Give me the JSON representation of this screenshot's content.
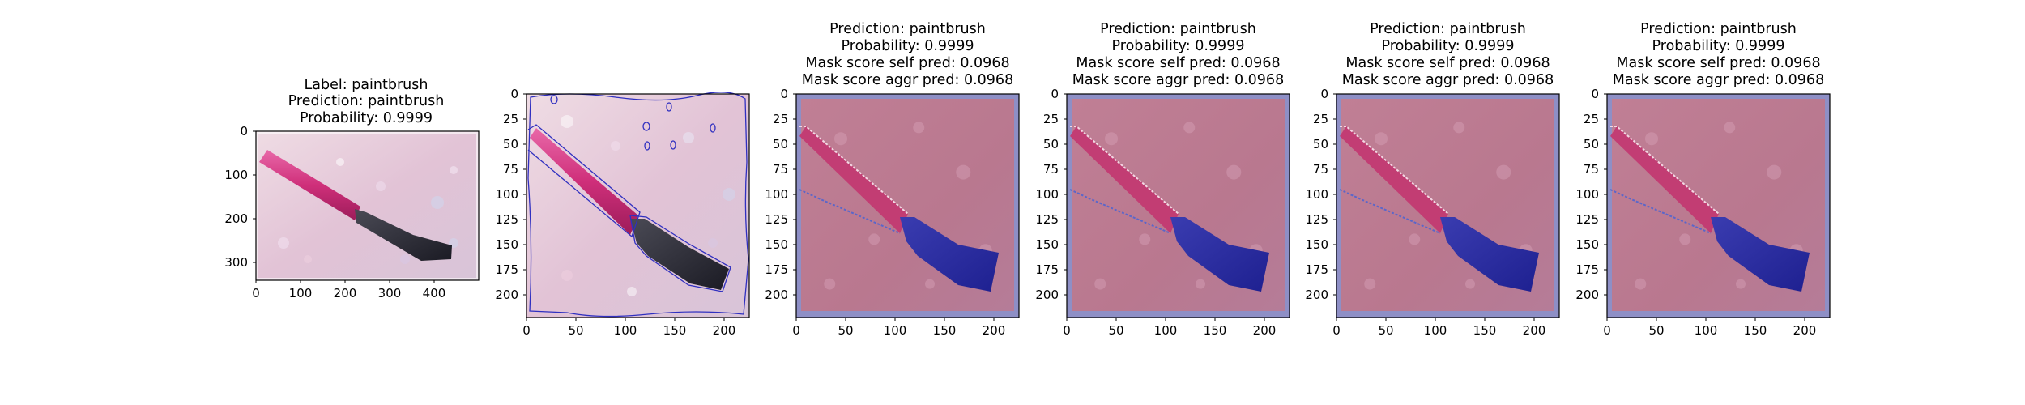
{
  "figure": {
    "panels": [
      {
        "titles": [
          "Label: paintbrush",
          "Prediction: paintbrush",
          "Probability: 0.9999"
        ],
        "xticks": [
          "0",
          "100",
          "200",
          "300",
          "400"
        ],
        "yticks": [
          "0",
          "100",
          "200",
          "300"
        ],
        "image": "original",
        "overlay": "none"
      },
      {
        "titles": [],
        "xticks": [
          "0",
          "50",
          "100",
          "150",
          "200"
        ],
        "yticks": [
          "0",
          "25",
          "50",
          "75",
          "100",
          "125",
          "150",
          "175",
          "200"
        ],
        "image": "contours",
        "overlay": "contour"
      },
      {
        "titles": [
          "Prediction: paintbrush",
          "Probability: 0.9999",
          "Mask score self pred: 0.0968",
          "Mask score aggr pred: 0.0968"
        ],
        "xticks": [
          "0",
          "50",
          "100",
          "150",
          "200"
        ],
        "yticks": [
          "0",
          "25",
          "50",
          "75",
          "100",
          "125",
          "150",
          "175",
          "200"
        ],
        "image": "mask",
        "overlay": "mask"
      },
      {
        "titles": [
          "Prediction: paintbrush",
          "Probability: 0.9999",
          "Mask score self pred: 0.0968",
          "Mask score aggr pred: 0.0968"
        ],
        "xticks": [
          "0",
          "50",
          "100",
          "150",
          "200"
        ],
        "yticks": [
          "0",
          "25",
          "50",
          "75",
          "100",
          "125",
          "150",
          "175",
          "200"
        ],
        "image": "mask",
        "overlay": "mask"
      },
      {
        "titles": [
          "Prediction: paintbrush",
          "Probability: 0.9999",
          "Mask score self pred: 0.0968",
          "Mask score aggr pred: 0.0968"
        ],
        "xticks": [
          "0",
          "50",
          "100",
          "150",
          "200"
        ],
        "yticks": [
          "0",
          "25",
          "50",
          "75",
          "100",
          "125",
          "150",
          "175",
          "200"
        ],
        "image": "mask",
        "overlay": "mask"
      },
      {
        "titles": [
          "Prediction: paintbrush",
          "Probability: 0.9999",
          "Mask score self pred: 0.0968",
          "Mask score aggr pred: 0.0968"
        ],
        "xticks": [
          "0",
          "50",
          "100",
          "150",
          "200"
        ],
        "yticks": [
          "0",
          "25",
          "50",
          "75",
          "100",
          "125",
          "150",
          "175",
          "200"
        ],
        "image": "mask",
        "overlay": "mask"
      }
    ],
    "colors": {
      "background_pink": "#e8c8d4",
      "brush_handle": "#d0347e",
      "bristles": "#2a2a3a",
      "mask_tint": "#2a2ea0",
      "contour": "#3030c0"
    }
  }
}
